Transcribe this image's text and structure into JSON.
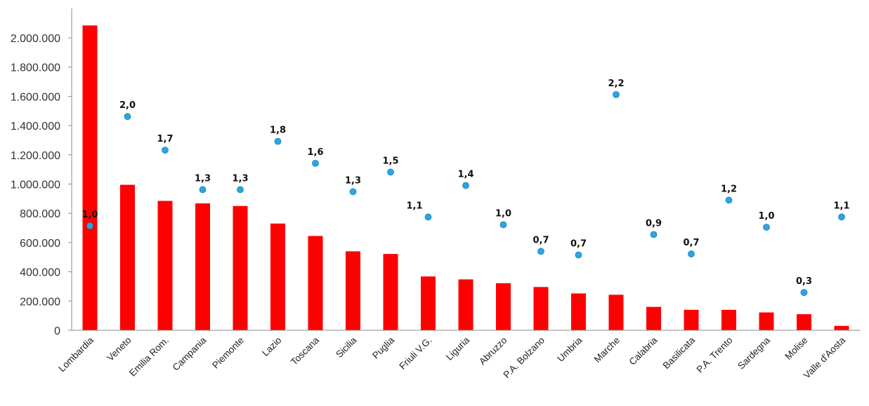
{
  "chart_data": {
    "type": "bar",
    "title": "",
    "xlabel": "",
    "ylabel": "",
    "ylim": [
      0,
      2200000
    ],
    "yticks": [
      0,
      200000,
      400000,
      600000,
      800000,
      1000000,
      1200000,
      1400000,
      1600000,
      1800000,
      2000000
    ],
    "ytick_labels": [
      "0",
      "200.000",
      "400.000",
      "600.000",
      "800.000",
      "1.000.000",
      "1.200.000",
      "1.400.000",
      "1.600.000",
      "1.800.000",
      "2.000.000"
    ],
    "categories": [
      "Lombardia",
      "Veneto",
      "Emilia Rom.",
      "Campania",
      "Piemonte",
      "Lazio",
      "Toscana",
      "Sicilia",
      "Puglia",
      "Friuli V.G.",
      "Liguria",
      "Abruzzo",
      "P.A. Bolzano",
      "Umbria",
      "Marche",
      "Calabria",
      "Basilicata",
      "P.A. Trento",
      "Sardegna",
      "Molise",
      "Valle d'Aosta"
    ],
    "series": [
      {
        "type": "bar",
        "color": "#ff0000",
        "values": [
          2085000,
          995000,
          885000,
          868000,
          850000,
          730000,
          645000,
          540000,
          522000,
          368000,
          348000,
          322000,
          296000,
          252000,
          243000,
          160000,
          140000,
          140000,
          122000,
          110000,
          30000
        ]
      },
      {
        "type": "scatter",
        "color": "#2aa6e0",
        "values": [
          1.0,
          2.0,
          1.7,
          1.3,
          1.3,
          1.8,
          1.6,
          1.3,
          1.5,
          1.1,
          1.4,
          1.0,
          0.7,
          0.7,
          2.2,
          0.9,
          0.7,
          1.2,
          1.0,
          0.3,
          1.1
        ],
        "labels": [
          "1,0",
          "2,0",
          "1,7",
          "1,3",
          "1,3",
          "1,8",
          "1,6",
          "1,3",
          "1,5",
          "1,1",
          "1,4",
          "1,0",
          "0,7",
          "0,7",
          "2,2",
          "0,9",
          "0,7",
          "1,2",
          "1,0",
          "0,3",
          "1,1"
        ],
        "plotted_at": [
          715000,
          1462000,
          1232000,
          962000,
          962000,
          1292000,
          1142000,
          948000,
          1082000,
          775000,
          990000,
          722000,
          540000,
          515000,
          1612000,
          655000,
          522000,
          890000,
          705000,
          258000,
          775000
        ]
      }
    ],
    "grid": false,
    "legend": "none"
  }
}
